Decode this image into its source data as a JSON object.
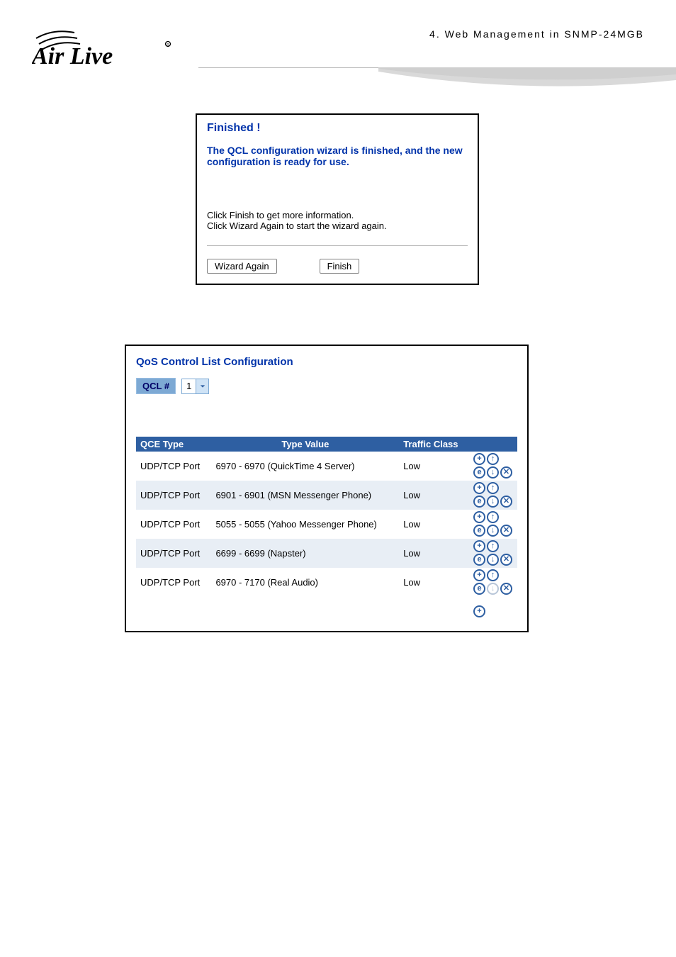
{
  "header": {
    "logo_text": "Air Live",
    "breadcrumb": "4.  Web  Management  in  SNMP-24MGB"
  },
  "colors": {
    "brand_blue": "#0033aa",
    "table_header_bg": "#2e5fa2",
    "table_header_fg": "#ffffff",
    "zebra_even": "#e8eef5",
    "select_bg": "#7da9d4",
    "select_label_fg": "#000066",
    "divider": "#bbbbbb",
    "icon_disabled": "#b8c6d8"
  },
  "wizard": {
    "title": "Finished !",
    "subtitle": "The QCL configuration wizard is finished, and the new configuration is ready for use.",
    "instruction1": "Click Finish to get more information.",
    "instruction2": "Click Wizard Again to start the wizard again.",
    "wizard_again_label": "Wizard Again",
    "finish_label": "Finish"
  },
  "qcl": {
    "title": "QoS Control List Configuration",
    "label": "QCL #",
    "selected": "1",
    "columns": {
      "type": "QCE Type",
      "value": "Type Value",
      "class": "Traffic Class"
    },
    "rows": [
      {
        "type": "UDP/TCP Port",
        "value": "6970 - 6970 (QuickTime 4 Server)",
        "class": "Low",
        "down_disabled": false
      },
      {
        "type": "UDP/TCP Port",
        "value": "6901 - 6901 (MSN Messenger Phone)",
        "class": "Low",
        "down_disabled": false
      },
      {
        "type": "UDP/TCP Port",
        "value": "5055 - 5055 (Yahoo Messenger Phone)",
        "class": "Low",
        "down_disabled": false
      },
      {
        "type": "UDP/TCP Port",
        "value": "6699 - 6699 (Napster)",
        "class": "Low",
        "down_disabled": false
      },
      {
        "type": "UDP/TCP Port",
        "value": "6970 - 7170 (Real Audio)",
        "class": "Low",
        "down_disabled": true
      }
    ],
    "icon_names": {
      "add": "add-icon",
      "up": "move-up-icon",
      "edit": "edit-icon",
      "down": "move-down-icon",
      "delete": "delete-icon"
    }
  }
}
